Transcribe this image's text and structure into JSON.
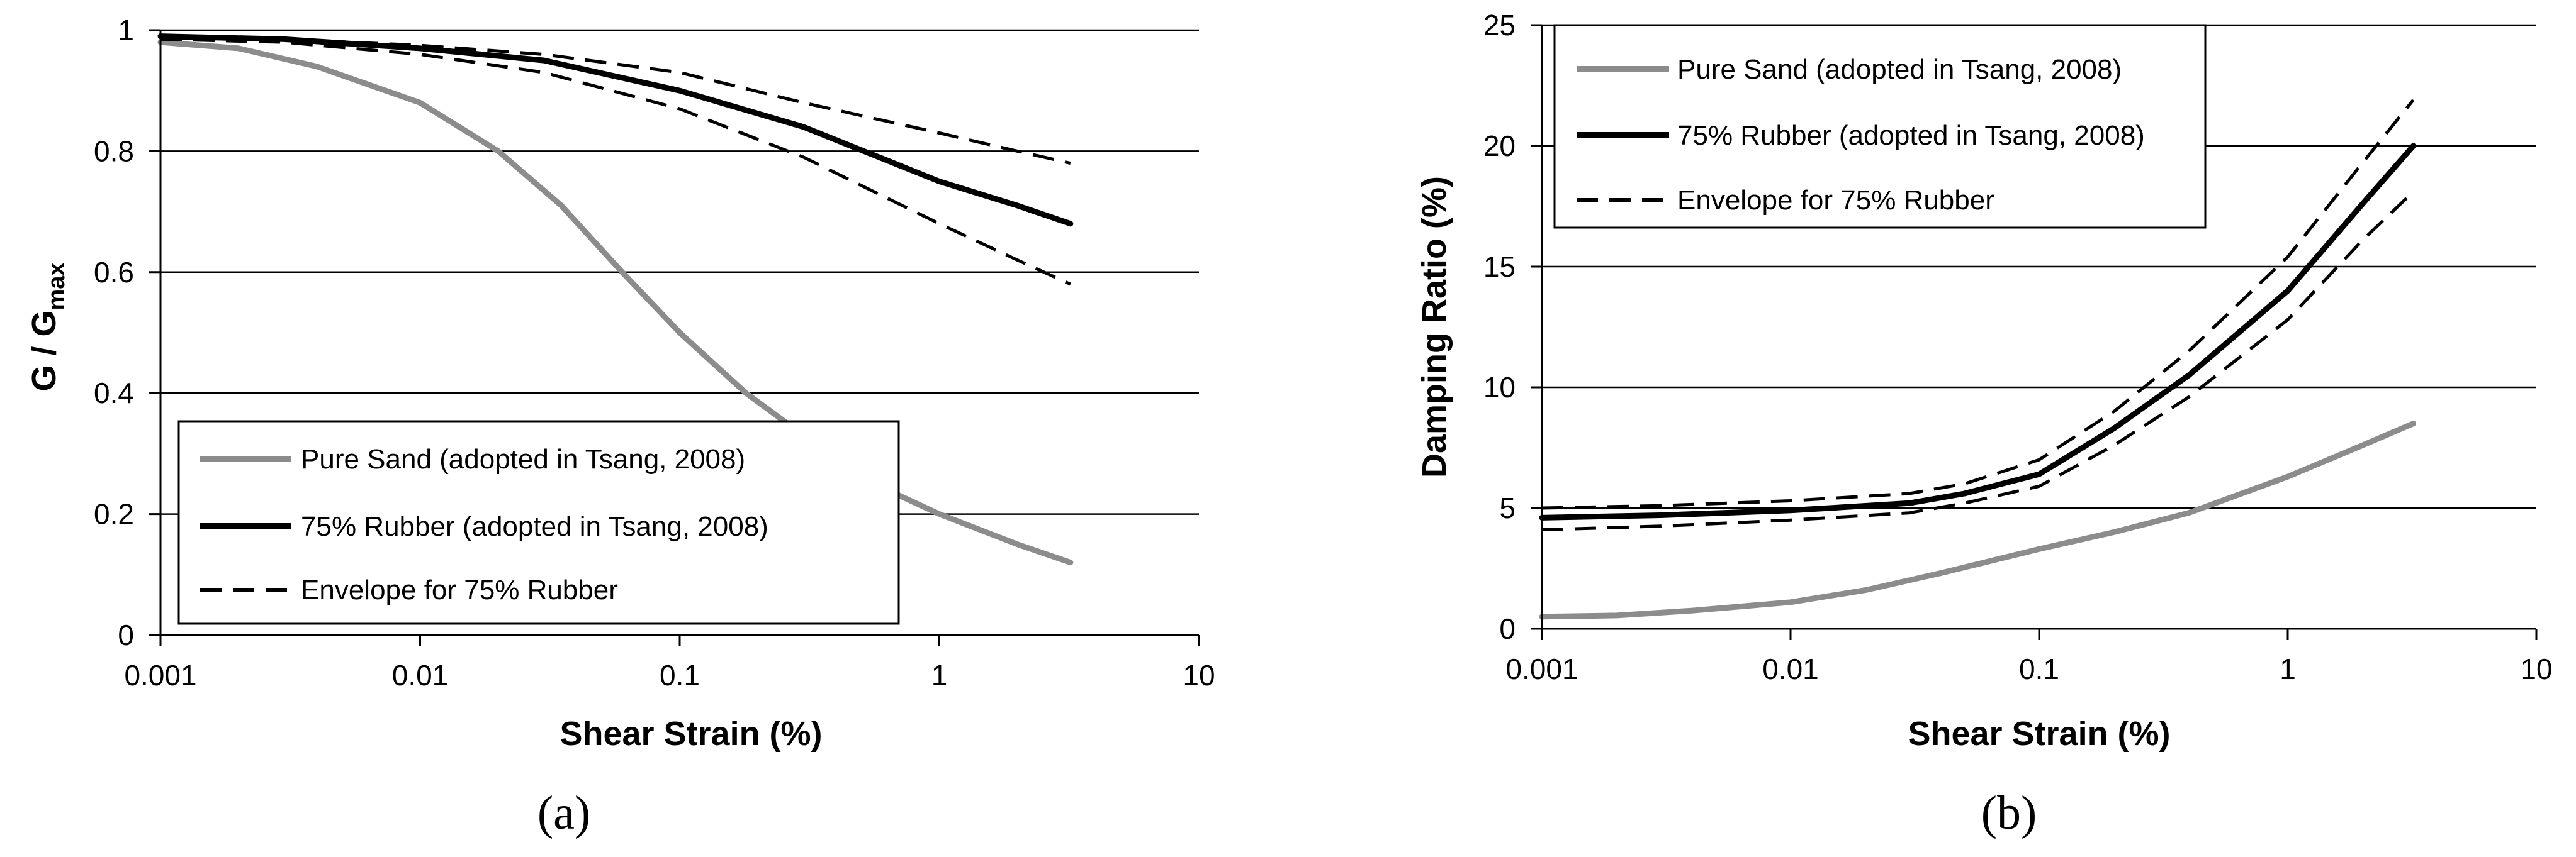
{
  "chart_data": [
    {
      "type": "line",
      "caption": "(a)",
      "xlabel": "Shear Strain (%)",
      "ylabel": "G / G",
      "ylabel_sub": "max",
      "xscale": "log",
      "xlim": [
        0.001,
        10
      ],
      "ylim": [
        0,
        1
      ],
      "xticks": [
        0.001,
        0.01,
        0.1,
        1,
        10
      ],
      "xtick_labels": [
        "0.001",
        "0.01",
        "0.1",
        "1",
        "10"
      ],
      "yticks": [
        0,
        0.2,
        0.4,
        0.6,
        0.8,
        1
      ],
      "ytick_labels": [
        "0",
        "0.2",
        "0.4",
        "0.6",
        "0.8",
        "1"
      ],
      "grid": "horizontal",
      "legend_position": "bottom-left",
      "series": [
        {
          "name": "Pure Sand (adopted in Tsang, 2008)",
          "color": "#8c8c8c",
          "style": "solid",
          "x": [
            0.001,
            0.002,
            0.004,
            0.01,
            0.02,
            0.035,
            0.06,
            0.1,
            0.18,
            0.3,
            0.5,
            1,
            2,
            3.2
          ],
          "y": [
            0.98,
            0.97,
            0.94,
            0.88,
            0.8,
            0.71,
            0.6,
            0.5,
            0.4,
            0.33,
            0.26,
            0.2,
            0.15,
            0.12
          ]
        },
        {
          "name": "75% Rubber (adopted in Tsang, 2008)",
          "color": "#000000",
          "style": "solid",
          "x": [
            0.001,
            0.003,
            0.01,
            0.03,
            0.1,
            0.3,
            1,
            2,
            3.2
          ],
          "y": [
            0.99,
            0.985,
            0.97,
            0.95,
            0.9,
            0.84,
            0.75,
            0.71,
            0.68
          ]
        },
        {
          "name": "Envelope for 75% Rubber",
          "color": "#000000",
          "style": "dashed",
          "x": [
            0.001,
            0.003,
            0.01,
            0.03,
            0.1,
            0.3,
            1,
            2,
            3.2
          ],
          "y": [
            0.99,
            0.985,
            0.975,
            0.96,
            0.93,
            0.88,
            0.83,
            0.8,
            0.78
          ]
        },
        {
          "name": "",
          "color": "#000000",
          "style": "dashed",
          "x": [
            0.001,
            0.003,
            0.01,
            0.03,
            0.1,
            0.3,
            1,
            2,
            3.2
          ],
          "y": [
            0.985,
            0.98,
            0.96,
            0.93,
            0.87,
            0.79,
            0.68,
            0.62,
            0.58
          ]
        }
      ]
    },
    {
      "type": "line",
      "caption": "(b)",
      "xlabel": "Shear Strain (%)",
      "ylabel": "Damping Ratio (%)",
      "xscale": "log",
      "xlim": [
        0.001,
        10
      ],
      "ylim": [
        0,
        25
      ],
      "xticks": [
        0.001,
        0.01,
        0.1,
        1,
        10
      ],
      "xtick_labels": [
        "0.001",
        "0.01",
        "0.1",
        "1",
        "10"
      ],
      "yticks": [
        0,
        5,
        10,
        15,
        20,
        25
      ],
      "ytick_labels": [
        "0",
        "5",
        "10",
        "15",
        "20",
        "25"
      ],
      "grid": "horizontal",
      "legend_position": "top-left",
      "series": [
        {
          "name": "Pure Sand (adopted in Tsang, 2008)",
          "color": "#8c8c8c",
          "style": "solid",
          "x": [
            0.001,
            0.002,
            0.004,
            0.01,
            0.02,
            0.04,
            0.1,
            0.2,
            0.4,
            1,
            2,
            3.2
          ],
          "y": [
            0.5,
            0.55,
            0.75,
            1.1,
            1.6,
            2.3,
            3.3,
            4.0,
            4.8,
            6.3,
            7.6,
            8.5
          ]
        },
        {
          "name": "75% Rubber (adopted in Tsang, 2008)",
          "color": "#000000",
          "style": "solid",
          "x": [
            0.001,
            0.003,
            0.01,
            0.03,
            0.05,
            0.1,
            0.2,
            0.4,
            1,
            2,
            3.2
          ],
          "y": [
            4.6,
            4.7,
            4.9,
            5.2,
            5.6,
            6.4,
            8.3,
            10.5,
            14,
            17.6,
            20
          ]
        },
        {
          "name": "Envelope for 75% Rubber",
          "color": "#000000",
          "style": "dashed",
          "x": [
            0.001,
            0.003,
            0.01,
            0.03,
            0.05,
            0.1,
            0.2,
            0.4,
            1,
            2,
            3.2
          ],
          "y": [
            5.0,
            5.1,
            5.3,
            5.6,
            6.0,
            7.0,
            9.0,
            11.5,
            15.4,
            19.3,
            21.9
          ]
        },
        {
          "name": "",
          "color": "#000000",
          "style": "dashed",
          "x": [
            0.001,
            0.003,
            0.01,
            0.03,
            0.05,
            0.1,
            0.2,
            0.4,
            1,
            2,
            3.2
          ],
          "y": [
            4.1,
            4.25,
            4.5,
            4.8,
            5.2,
            5.9,
            7.6,
            9.6,
            12.8,
            16.1,
            18.1
          ]
        }
      ]
    }
  ]
}
